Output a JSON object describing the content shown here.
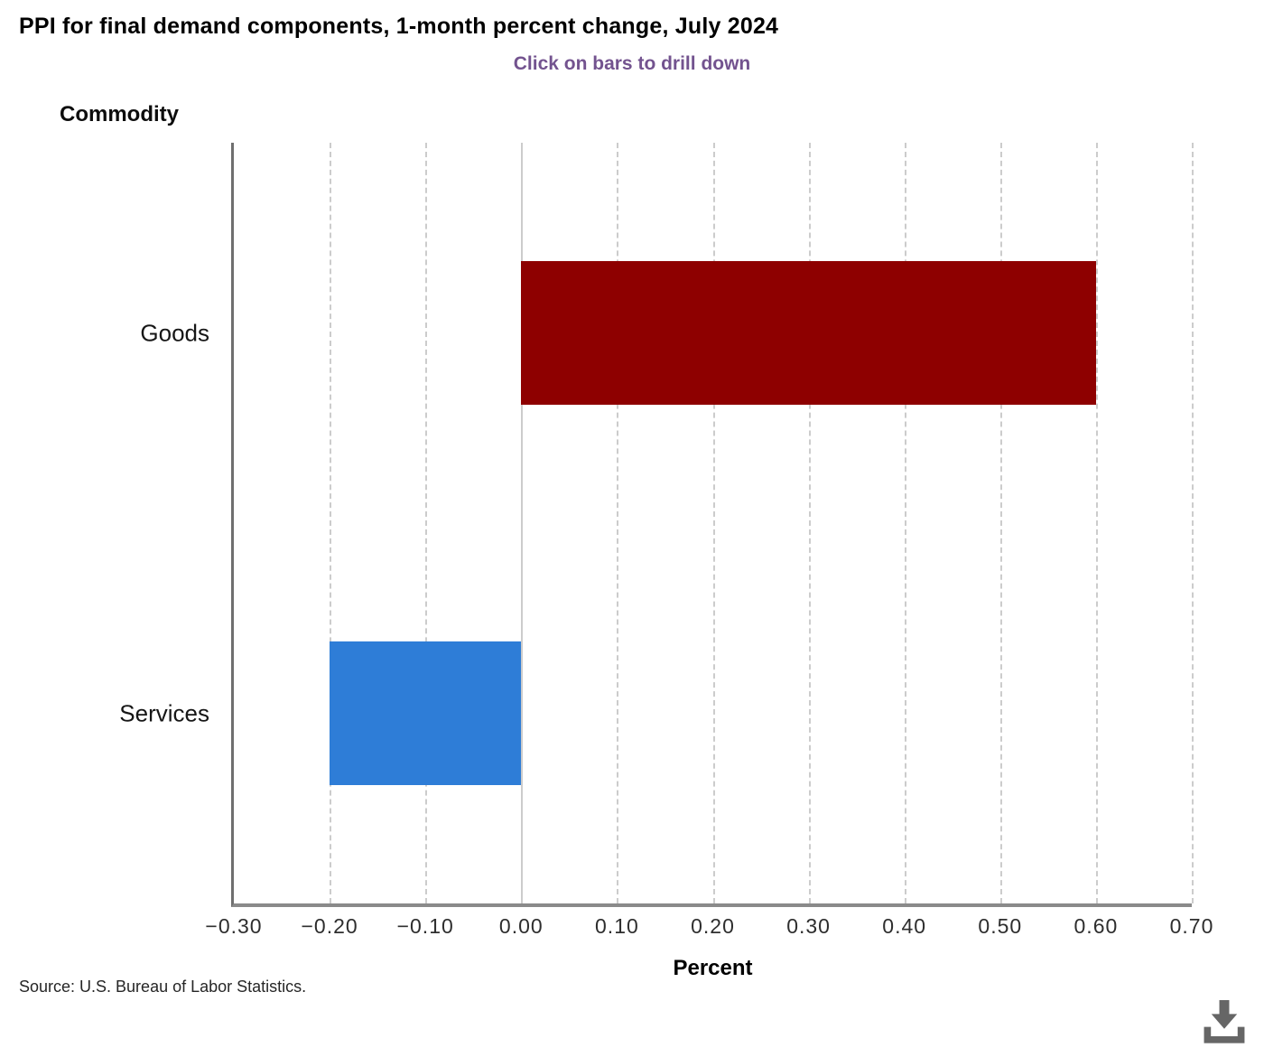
{
  "chart": {
    "title": "PPI for final demand components, 1-month percent change, July 2024",
    "subtitle": "Click on bars to drill down",
    "y_axis_title": "Commodity",
    "x_axis_title": "Percent"
  },
  "chart_data": {
    "type": "bar",
    "orientation": "horizontal",
    "title": "PPI for final demand components, 1-month percent change, July 2024",
    "subtitle": "Click on bars to drill down",
    "categories": [
      "Goods",
      "Services"
    ],
    "values": [
      0.6,
      -0.2
    ],
    "bar_colors": [
      "#8e0000",
      "#2e7dd7"
    ],
    "xlabel": "Percent",
    "ylabel": "Commodity",
    "xlim": [
      -0.3,
      0.7
    ],
    "xticks": [
      -0.3,
      -0.2,
      -0.1,
      0,
      0.1,
      0.2,
      0.3,
      0.4,
      0.5,
      0.6,
      0.7
    ],
    "xtick_labels": [
      "−0.30",
      "−0.20",
      "−0.10",
      "0.00",
      "0.10",
      "0.20",
      "0.30",
      "0.40",
      "0.50",
      "0.60",
      "0.70"
    ],
    "grid": "vertical-dashed",
    "zero_line": "solid",
    "legend_position": "none"
  },
  "footer": {
    "source": "Source: U.S. Bureau of Labor Statistics."
  },
  "icons": {
    "download": "download-icon"
  },
  "colors": {
    "subtitle_text": "#73538f",
    "goods_bar": "#8e0000",
    "services_bar": "#2e7dd7",
    "axis_line": "#6f6f6f",
    "bottom_axis_line": "#8a8a8a",
    "gridline": "#cccccc",
    "download_icon": "#666666"
  }
}
